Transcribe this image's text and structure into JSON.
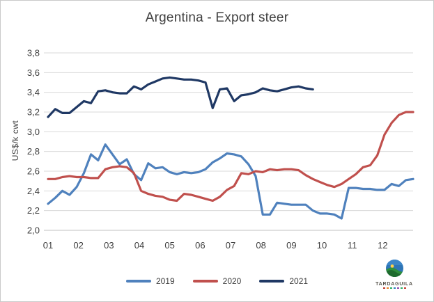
{
  "chart_data": {
    "type": "line",
    "title": "Argentina - Export steer",
    "ylabel": "US$/k cwt",
    "xlabel": "",
    "x_unit": "week",
    "grid": true,
    "legend_position": "bottom-center",
    "x_axis": {
      "categories": [
        "01",
        "02",
        "03",
        "04",
        "05",
        "06",
        "07",
        "08",
        "09",
        "10",
        "11",
        "12"
      ]
    },
    "y_axis": {
      "min": 2.0,
      "max": 3.8,
      "tick_step": 0.2,
      "decimal_separator": ",",
      "tick_labels": [
        "2,0",
        "2,2",
        "2,4",
        "2,6",
        "2,8",
        "3,0",
        "3,2",
        "3,4",
        "3,6",
        "3,8"
      ]
    },
    "series": [
      {
        "name": "2019",
        "color": "#4F81BD",
        "values": [
          2.27,
          2.33,
          2.4,
          2.36,
          2.44,
          2.58,
          2.77,
          2.71,
          2.87,
          2.77,
          2.67,
          2.72,
          2.57,
          2.51,
          2.68,
          2.63,
          2.64,
          2.59,
          2.57,
          2.59,
          2.58,
          2.59,
          2.62,
          2.69,
          2.73,
          2.78,
          2.77,
          2.75,
          2.67,
          2.55,
          2.16,
          2.16,
          2.28,
          2.27,
          2.26,
          2.26,
          2.26,
          2.2,
          2.17,
          2.17,
          2.16,
          2.12,
          2.43,
          2.43,
          2.42,
          2.42,
          2.41,
          2.41,
          2.47,
          2.45,
          2.51,
          2.52
        ]
      },
      {
        "name": "2020",
        "color": "#C0504D",
        "values": [
          2.52,
          2.52,
          2.54,
          2.55,
          2.54,
          2.54,
          2.53,
          2.53,
          2.62,
          2.64,
          2.65,
          2.64,
          2.58,
          2.4,
          2.37,
          2.35,
          2.34,
          2.31,
          2.3,
          2.37,
          2.36,
          2.34,
          2.32,
          2.3,
          2.34,
          2.41,
          2.45,
          2.58,
          2.57,
          2.6,
          2.59,
          2.62,
          2.61,
          2.62,
          2.62,
          2.61,
          2.56,
          2.52,
          2.49,
          2.46,
          2.44,
          2.47,
          2.52,
          2.57,
          2.64,
          2.66,
          2.76,
          2.97,
          3.09,
          3.17,
          3.2,
          3.2
        ]
      },
      {
        "name": "2021",
        "color": "#1F3864",
        "values": [
          3.15,
          3.23,
          3.19,
          3.19,
          3.25,
          3.31,
          3.29,
          3.41,
          3.42,
          3.4,
          3.39,
          3.39,
          3.46,
          3.43,
          3.48,
          3.51,
          3.54,
          3.55,
          3.54,
          3.53,
          3.53,
          3.52,
          3.5,
          3.24,
          3.43,
          3.44,
          3.31,
          3.37,
          3.38,
          3.4,
          3.44,
          3.42,
          3.41,
          3.43,
          3.45,
          3.46,
          3.44,
          3.43
        ]
      }
    ]
  },
  "logo": {
    "text": "TARDAGUILA"
  },
  "colors": {
    "grid": "#d9d9d9",
    "axis_line": "#c0c0c0",
    "axis_text": "#404040",
    "title_text": "#404040",
    "border": "#c9c9c9",
    "background": "#ffffff"
  }
}
